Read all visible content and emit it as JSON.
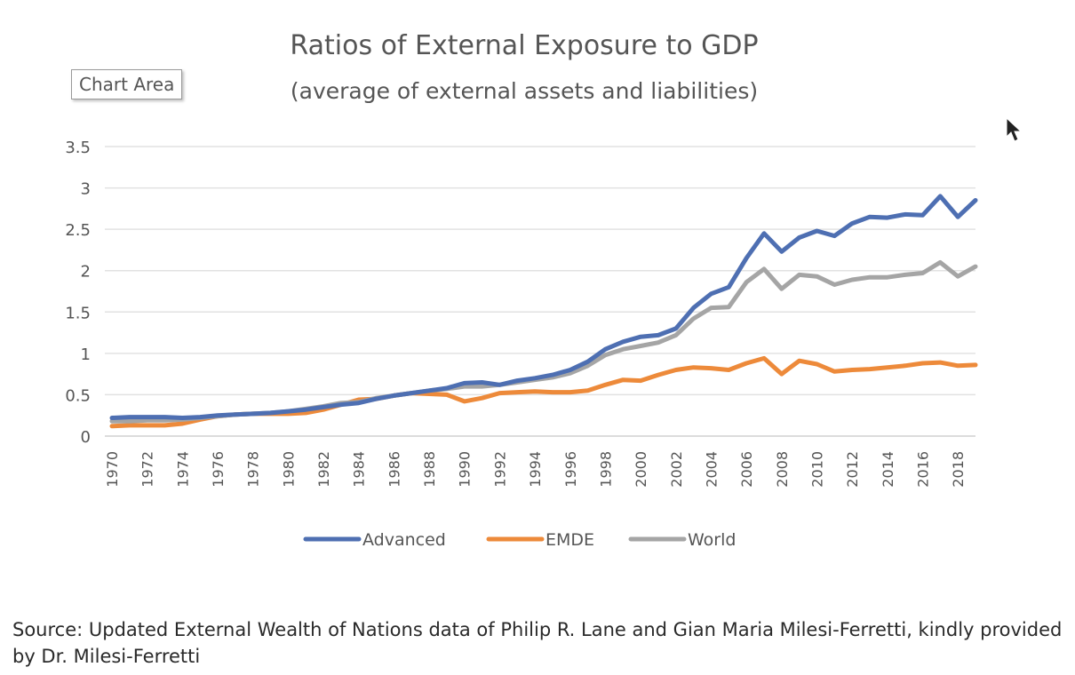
{
  "tooltip": "Chart Area",
  "source": "Source: Updated External Wealth of Nations data of Philip R. Lane and Gian Maria Milesi-Ferretti, kindly provided by Dr. Milesi-Ferretti",
  "chart_data": {
    "type": "line",
    "title": "Ratios of External Exposure to GDP",
    "subtitle": "(average of external assets and liabilities)",
    "xlabel": "",
    "ylabel": "",
    "ylim": [
      0,
      3.5
    ],
    "yticks": [
      "0",
      "0.5",
      "1",
      "1.5",
      "2",
      "2.5",
      "3",
      "3.5"
    ],
    "grid": true,
    "legend": "bottom",
    "x": [
      1970,
      1971,
      1972,
      1973,
      1974,
      1975,
      1976,
      1977,
      1978,
      1979,
      1980,
      1981,
      1982,
      1983,
      1984,
      1985,
      1986,
      1987,
      1988,
      1989,
      1990,
      1991,
      1992,
      1993,
      1994,
      1995,
      1996,
      1997,
      1998,
      1999,
      2000,
      2001,
      2002,
      2003,
      2004,
      2005,
      2006,
      2007,
      2008,
      2009,
      2010,
      2011,
      2012,
      2013,
      2014,
      2015,
      2016,
      2017,
      2018,
      2019
    ],
    "xtick_labels": [
      "1970",
      "1972",
      "1974",
      "1976",
      "1978",
      "1980",
      "1982",
      "1984",
      "1986",
      "1988",
      "1990",
      "1992",
      "1994",
      "1996",
      "1998",
      "2000",
      "2002",
      "2004",
      "2006",
      "2008",
      "2010",
      "2012",
      "2014",
      "2016",
      "2018"
    ],
    "series": [
      {
        "name": "Advanced",
        "color": "#4e6fb2",
        "values": [
          0.22,
          0.23,
          0.23,
          0.23,
          0.22,
          0.23,
          0.25,
          0.26,
          0.27,
          0.28,
          0.3,
          0.32,
          0.35,
          0.38,
          0.4,
          0.45,
          0.49,
          0.52,
          0.55,
          0.58,
          0.64,
          0.65,
          0.62,
          0.67,
          0.7,
          0.74,
          0.8,
          0.9,
          1.05,
          1.14,
          1.2,
          1.22,
          1.3,
          1.55,
          1.72,
          1.8,
          2.15,
          2.45,
          2.23,
          2.4,
          2.48,
          2.42,
          2.57,
          2.65,
          2.64,
          2.68,
          2.67,
          2.9,
          2.65,
          2.85
        ]
      },
      {
        "name": "EMDE",
        "color": "#ed8a3a",
        "values": [
          0.12,
          0.13,
          0.13,
          0.13,
          0.15,
          0.2,
          0.24,
          0.26,
          0.27,
          0.27,
          0.27,
          0.28,
          0.32,
          0.38,
          0.44,
          0.45,
          0.49,
          0.52,
          0.51,
          0.5,
          0.42,
          0.46,
          0.52,
          0.53,
          0.54,
          0.53,
          0.53,
          0.55,
          0.62,
          0.68,
          0.67,
          0.74,
          0.8,
          0.83,
          0.82,
          0.8,
          0.88,
          0.94,
          0.75,
          0.91,
          0.87,
          0.78,
          0.8,
          0.81,
          0.83,
          0.85,
          0.88,
          0.89,
          0.85,
          0.86
        ]
      },
      {
        "name": "World",
        "color": "#a5a5a5",
        "values": [
          0.18,
          0.18,
          0.19,
          0.19,
          0.2,
          0.22,
          0.24,
          0.26,
          0.27,
          0.28,
          0.3,
          0.33,
          0.36,
          0.4,
          0.41,
          0.46,
          0.49,
          0.52,
          0.55,
          0.57,
          0.6,
          0.6,
          0.62,
          0.65,
          0.68,
          0.71,
          0.76,
          0.85,
          0.98,
          1.05,
          1.09,
          1.13,
          1.22,
          1.42,
          1.55,
          1.56,
          1.86,
          2.02,
          1.78,
          1.95,
          1.93,
          1.83,
          1.89,
          1.92,
          1.92,
          1.95,
          1.97,
          2.1,
          1.93,
          2.05
        ]
      }
    ]
  }
}
